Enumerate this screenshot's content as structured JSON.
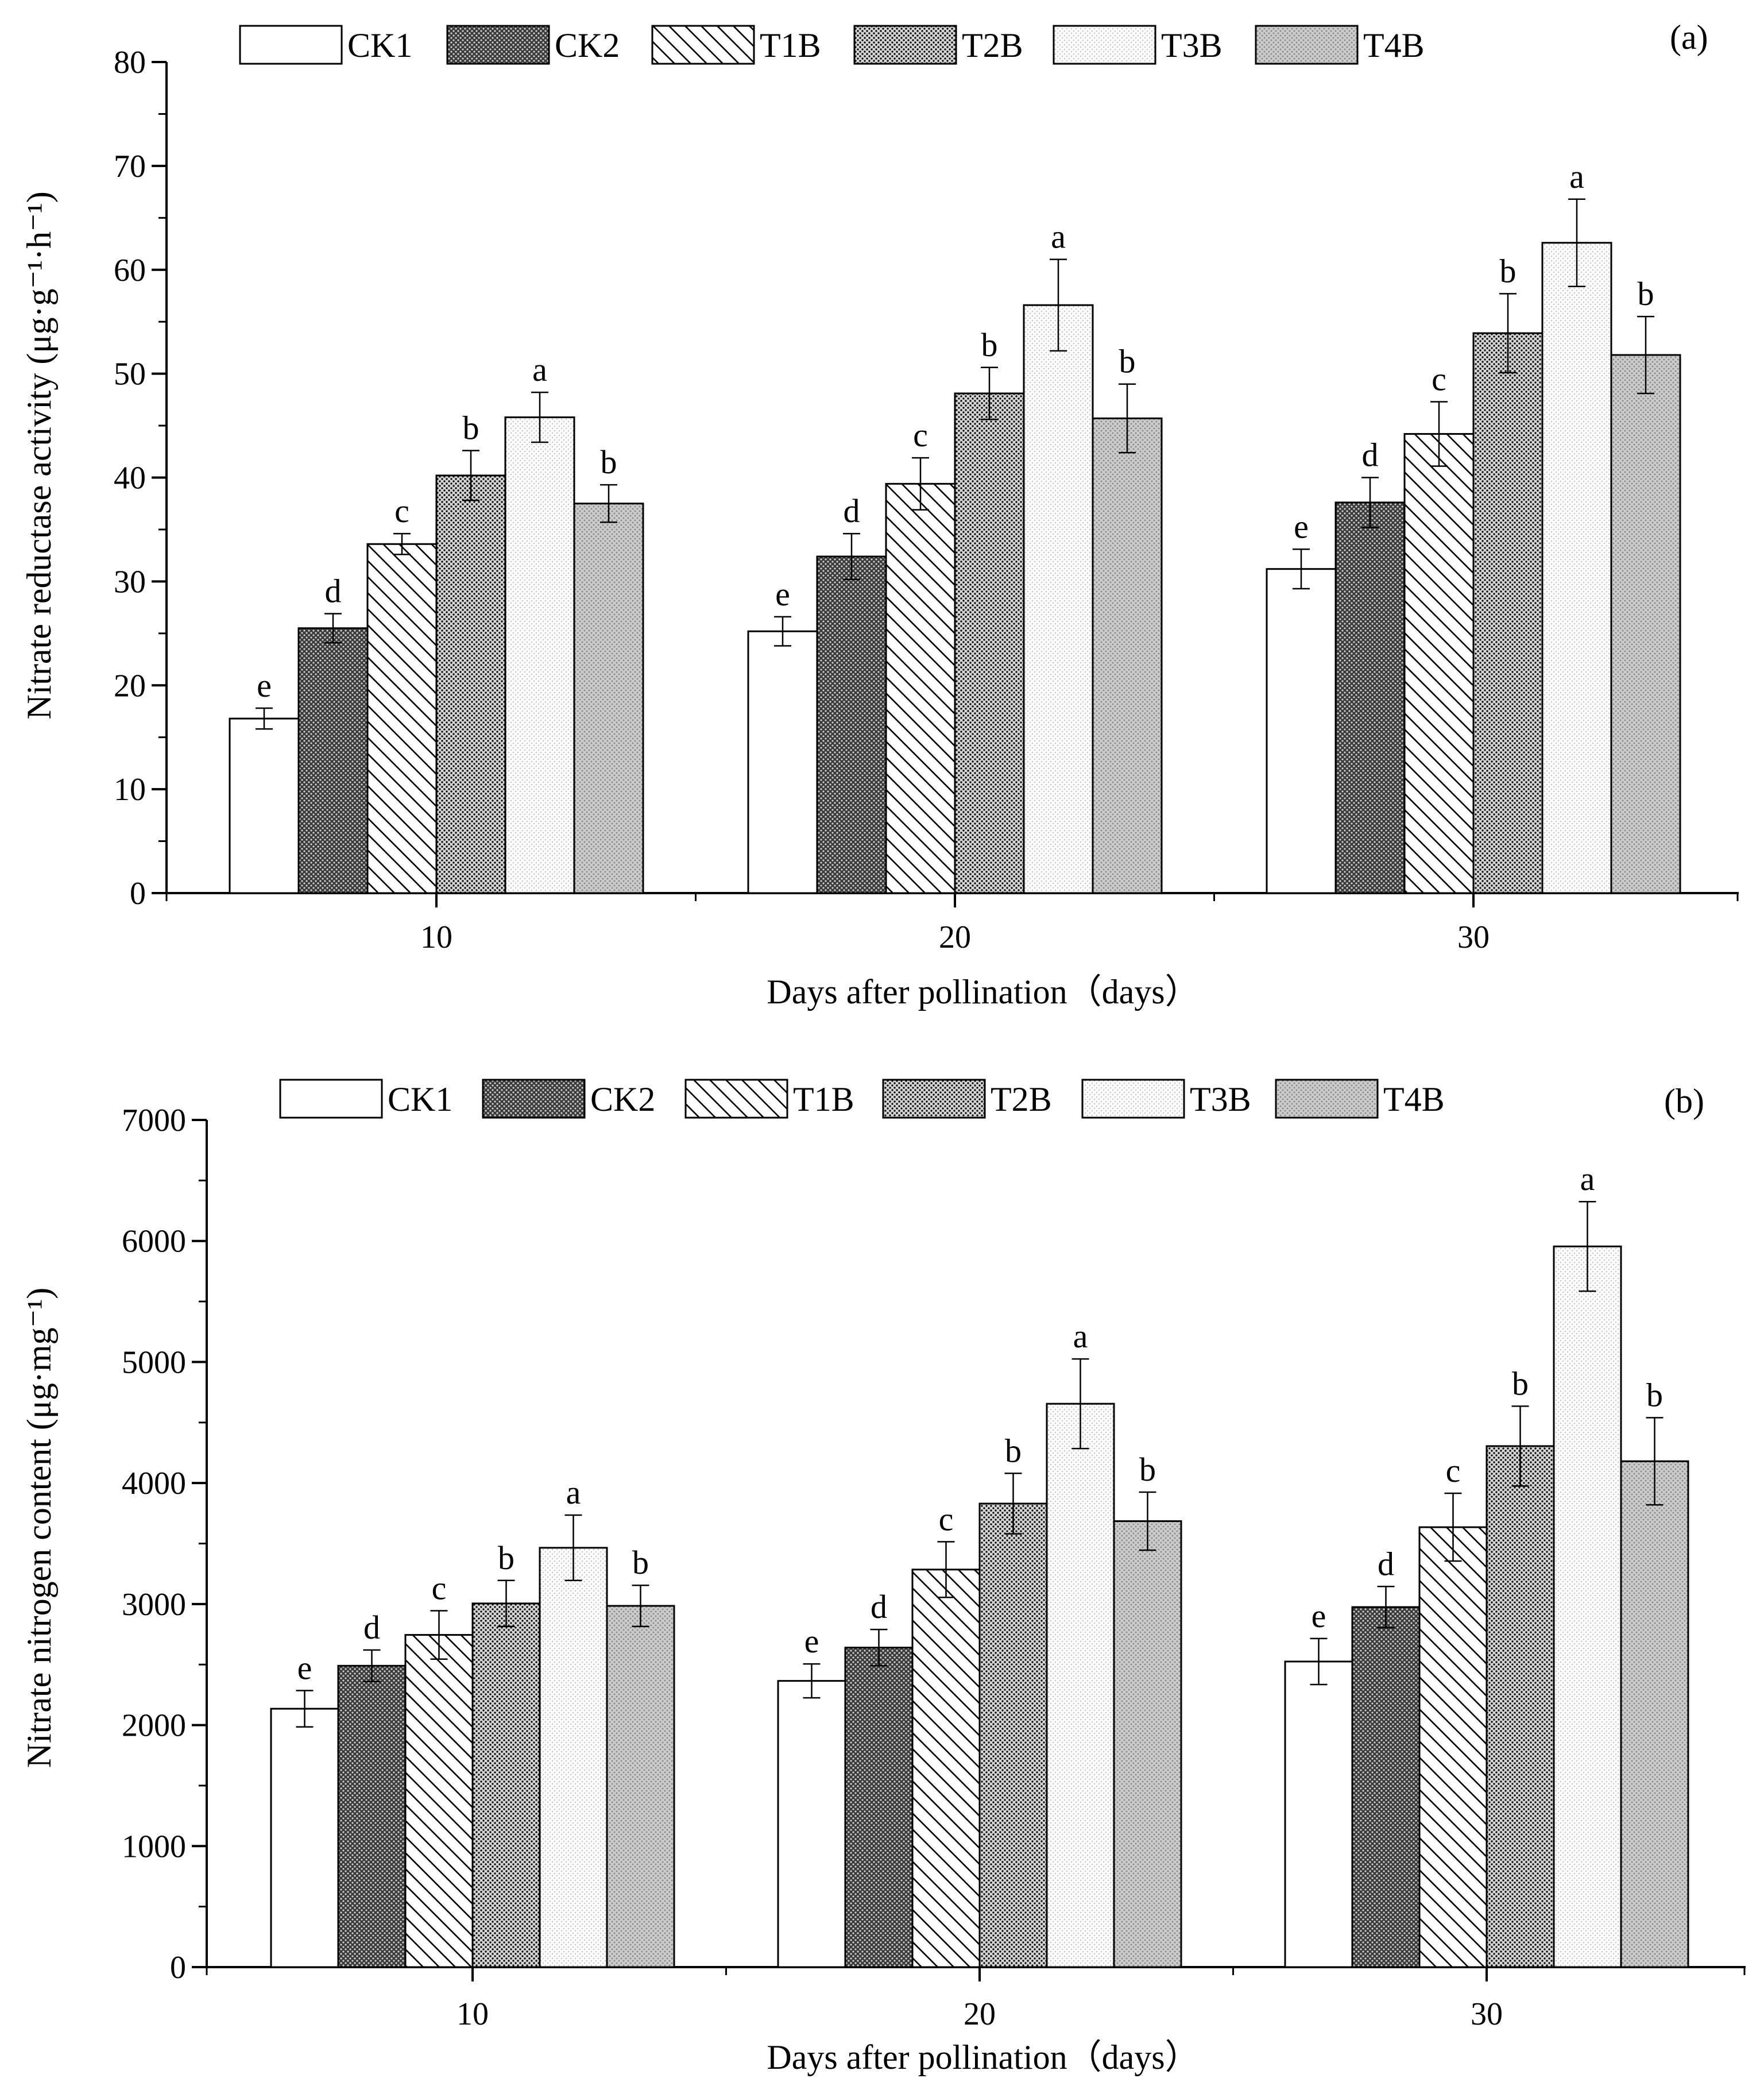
{
  "legend": [
    "CK1",
    "CK2",
    "T1B",
    "T2B",
    "T3B",
    "T4B"
  ],
  "series_patterns": [
    "blank",
    "dense-dark-dots",
    "diagonal-lines",
    "dense-dots",
    "light-dots",
    "medium-dots"
  ],
  "colors": {
    "stroke": "#000000",
    "background": "#ffffff"
  },
  "chart_data": [
    {
      "type": "bar",
      "panel_label": "(a)",
      "categories": [
        "10",
        "20",
        "30"
      ],
      "xlabel": "Days after pollination（days）",
      "ylabel": "Nitrate reductase activity (μg·g⁻¹·h⁻¹)",
      "ylim": [
        0,
        80
      ],
      "yticks": [
        0,
        10,
        20,
        30,
        40,
        50,
        60,
        70,
        80
      ],
      "series": [
        {
          "name": "CK1",
          "values": [
            16.8,
            25.2,
            31.2
          ],
          "errors": [
            1.0,
            1.4,
            1.9
          ],
          "letters": [
            "e",
            "e",
            "e"
          ]
        },
        {
          "name": "CK2",
          "values": [
            25.5,
            32.4,
            37.6
          ],
          "errors": [
            1.4,
            2.2,
            2.4
          ],
          "letters": [
            "d",
            "d",
            "d"
          ]
        },
        {
          "name": "T1B",
          "values": [
            33.6,
            39.4,
            44.2
          ],
          "errors": [
            1.0,
            2.5,
            3.1
          ],
          "letters": [
            "c",
            "c",
            "c"
          ]
        },
        {
          "name": "T2B",
          "values": [
            40.2,
            48.1,
            53.9
          ],
          "errors": [
            2.4,
            2.5,
            3.8
          ],
          "letters": [
            "b",
            "b",
            "b"
          ]
        },
        {
          "name": "T3B",
          "values": [
            45.8,
            56.6,
            62.6
          ],
          "errors": [
            2.4,
            4.4,
            4.2
          ],
          "letters": [
            "a",
            "a",
            "a"
          ]
        },
        {
          "name": "T4B",
          "values": [
            37.5,
            45.7,
            51.8
          ],
          "errors": [
            1.8,
            3.3,
            3.7
          ],
          "letters": [
            "b",
            "b",
            "b"
          ]
        }
      ]
    },
    {
      "type": "bar",
      "panel_label": "(b)",
      "categories": [
        "10",
        "20",
        "30"
      ],
      "xlabel": "Days after pollination（days）",
      "ylabel": "Nitrate nitrogen content (μg·mg⁻¹)",
      "ylim": [
        0,
        7000
      ],
      "yticks": [
        0,
        1000,
        2000,
        3000,
        4000,
        5000,
        6000,
        7000
      ],
      "series": [
        {
          "name": "CK1",
          "values": [
            2135,
            2365,
            2525
          ],
          "errors": [
            150,
            140,
            190
          ],
          "letters": [
            "e",
            "e",
            "e"
          ]
        },
        {
          "name": "CK2",
          "values": [
            2490,
            2640,
            2975
          ],
          "errors": [
            130,
            150,
            170
          ],
          "letters": [
            "d",
            "d",
            "d"
          ]
        },
        {
          "name": "T1B",
          "values": [
            2745,
            3285,
            3635
          ],
          "errors": [
            200,
            230,
            280
          ],
          "letters": [
            "c",
            "c",
            "c"
          ]
        },
        {
          "name": "T2B",
          "values": [
            3005,
            3830,
            4305
          ],
          "errors": [
            190,
            250,
            330
          ],
          "letters": [
            "b",
            "b",
            "b"
          ]
        },
        {
          "name": "T3B",
          "values": [
            3465,
            4655,
            5955
          ],
          "errors": [
            270,
            370,
            370
          ],
          "letters": [
            "a",
            "a",
            "a"
          ]
        },
        {
          "name": "T4B",
          "values": [
            2985,
            3685,
            4180
          ],
          "errors": [
            170,
            240,
            360
          ],
          "letters": [
            "b",
            "b",
            "b"
          ]
        }
      ]
    }
  ]
}
